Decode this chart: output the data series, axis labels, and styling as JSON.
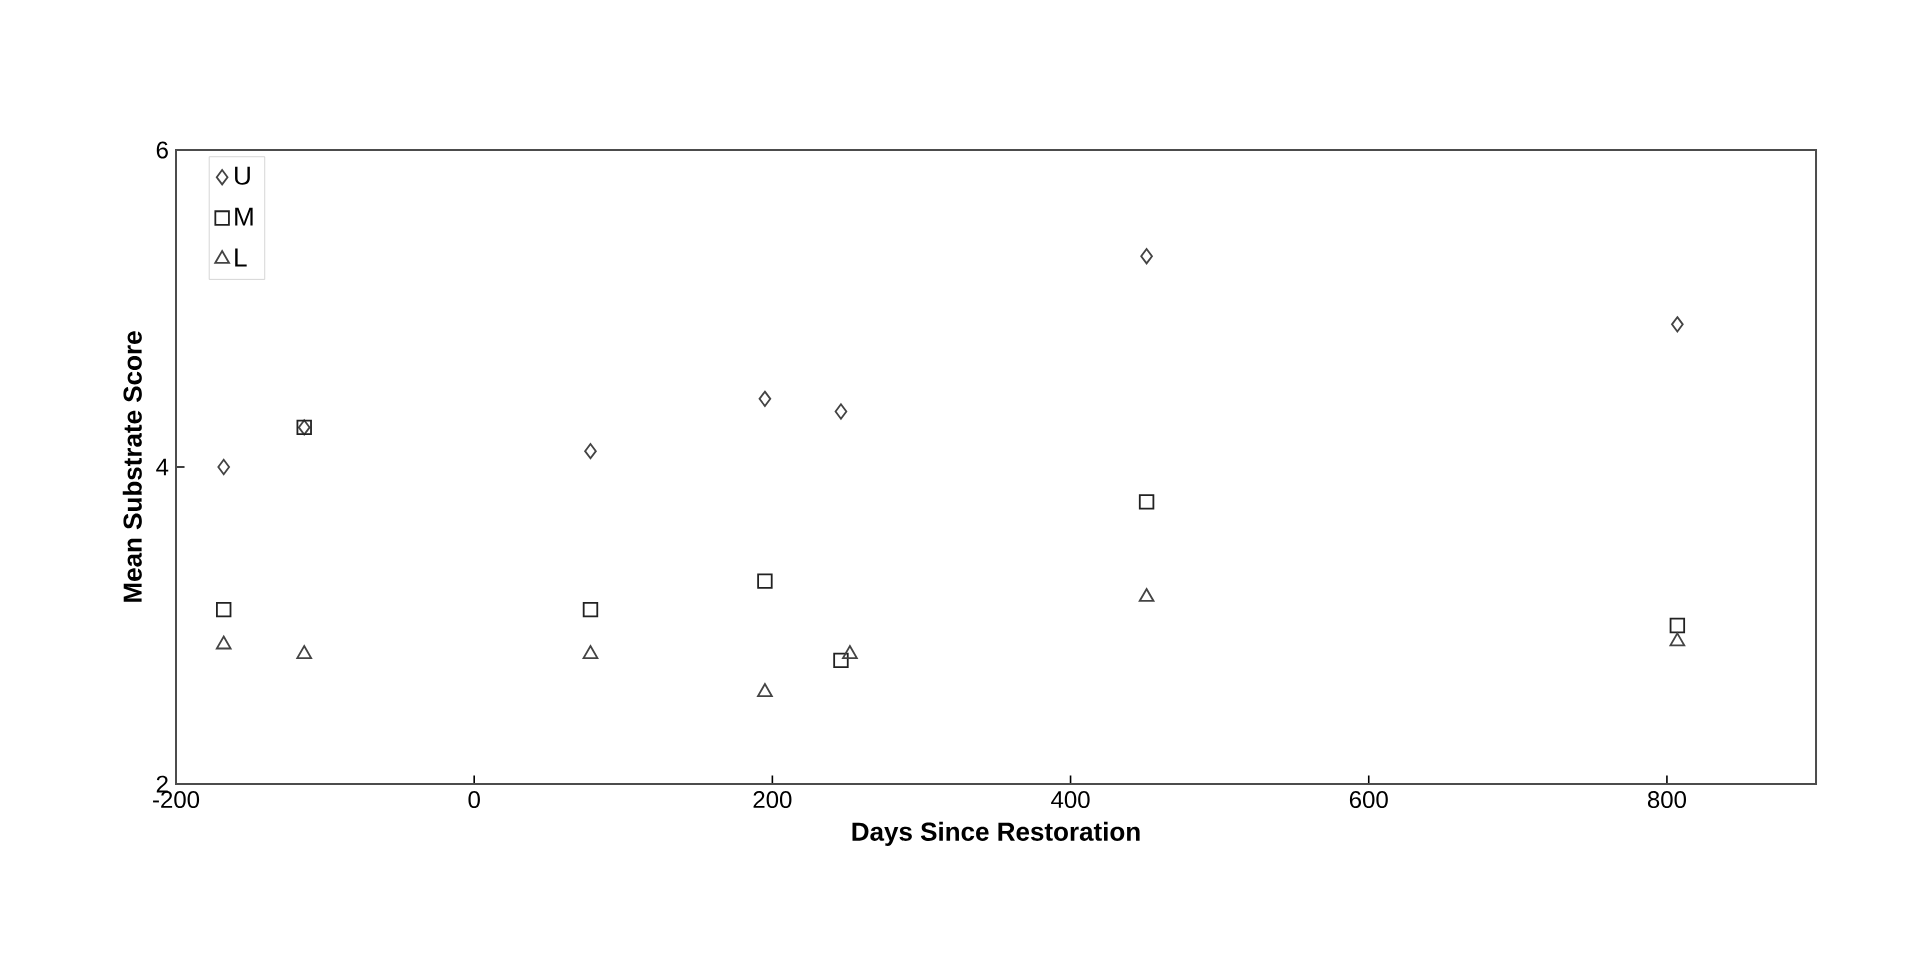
{
  "chart_data": {
    "type": "scatter",
    "xlabel": "Days Since Restoration",
    "ylabel": "Mean Substrate Score",
    "xlim": [
      -200,
      900
    ],
    "xticks": [
      -200,
      0,
      200,
      400,
      600,
      800
    ],
    "ylim": [
      2,
      6
    ],
    "yticks": [
      2,
      4,
      6
    ],
    "grid": false,
    "legend": "top left",
    "series": [
      {
        "name": "U",
        "color": "#444444",
        "marker": "diamond",
        "x": [
          -168,
          -114,
          78,
          195,
          246,
          451,
          807
        ],
        "values": [
          4.0,
          4.25,
          4.1,
          4.43,
          4.35,
          5.33,
          4.9
        ]
      },
      {
        "name": "M",
        "color": "#222222",
        "marker": "square",
        "x": [
          -168,
          -114,
          78,
          195,
          246,
          451,
          807
        ],
        "values": [
          3.1,
          4.25,
          3.1,
          3.28,
          2.78,
          3.78,
          3.0
        ]
      },
      {
        "name": "L",
        "color": "#444444",
        "marker": "triangle",
        "x": [
          -168,
          -114,
          78,
          195,
          252,
          451,
          807
        ],
        "values": [
          2.88,
          2.82,
          2.82,
          2.58,
          2.82,
          3.18,
          2.9
        ]
      }
    ]
  }
}
